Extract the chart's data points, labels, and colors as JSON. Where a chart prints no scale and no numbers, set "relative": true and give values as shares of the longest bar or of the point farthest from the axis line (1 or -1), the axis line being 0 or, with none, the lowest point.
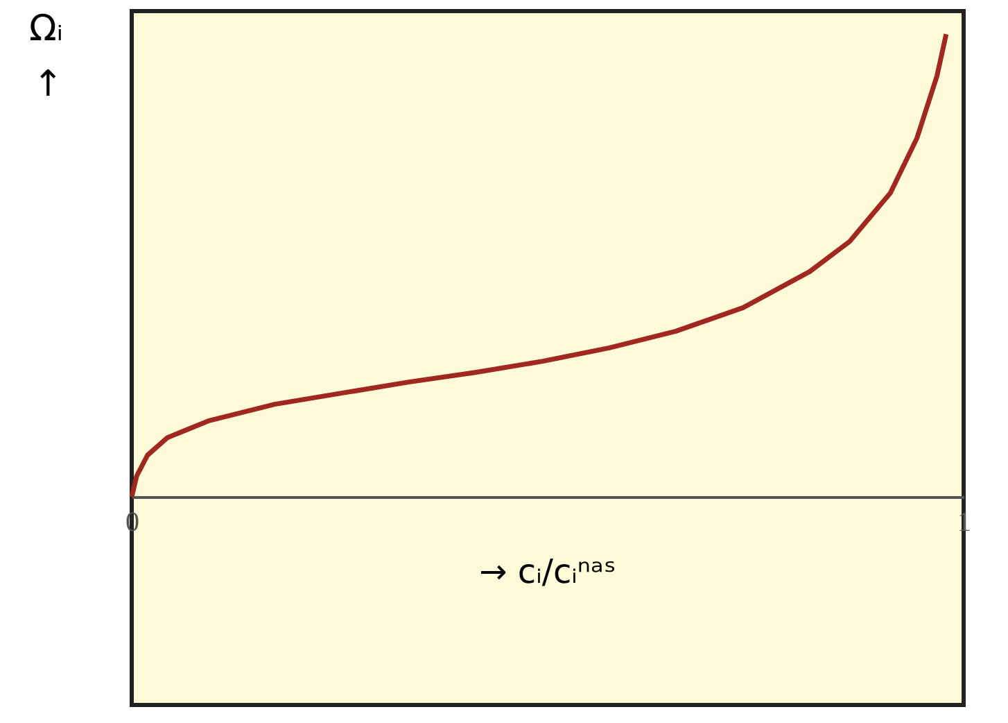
{
  "chart_data": {
    "type": "line",
    "relative": true,
    "xlabel": "→ cᵢ/cᵢⁿᵃˢ",
    "ylabel": "Ωᵢ\n↑",
    "xlim": [
      0,
      1
    ],
    "xticks": [
      0,
      1
    ],
    "x": [
      0,
      0.006,
      0.019,
      0.043,
      0.092,
      0.172,
      0.252,
      0.333,
      0.413,
      0.494,
      0.574,
      0.654,
      0.735,
      0.815,
      0.863,
      0.912,
      0.944,
      0.968,
      0.979
    ],
    "series": [
      {
        "color": "#a0281e",
        "values": [
          0,
          0.045,
          0.09,
          0.128,
          0.164,
          0.2,
          0.224,
          0.248,
          0.269,
          0.293,
          0.322,
          0.358,
          0.409,
          0.487,
          0.552,
          0.657,
          0.776,
          0.91,
          1.0
        ]
      }
    ]
  }
}
